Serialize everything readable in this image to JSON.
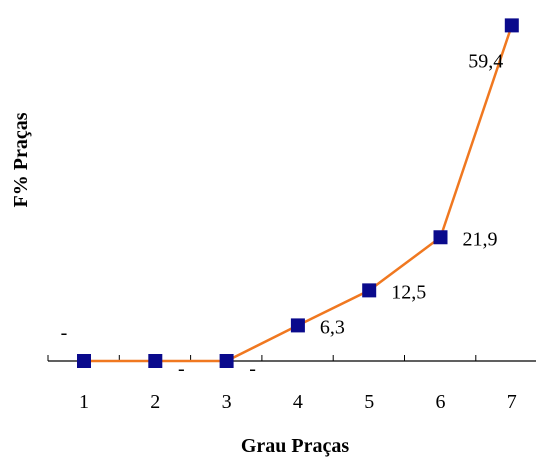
{
  "chart_data": {
    "type": "line",
    "title": "",
    "xlabel": "Grau Praças",
    "ylabel": "F% Praças",
    "categories": [
      "1",
      "2",
      "3",
      "4",
      "5",
      "6",
      "7"
    ],
    "values": [
      0,
      0,
      0,
      6.3,
      12.5,
      21.9,
      59.4
    ],
    "data_labels": [
      "-",
      "-",
      "-",
      "6,3",
      "12,5",
      "21,9",
      "59,4"
    ],
    "ylim": [
      0,
      60
    ],
    "grid": false,
    "legend": "none",
    "y_axis_visible": false,
    "colors": {
      "line": "#F07820",
      "marker": "#0A0A8C",
      "axis": "#000000"
    }
  }
}
